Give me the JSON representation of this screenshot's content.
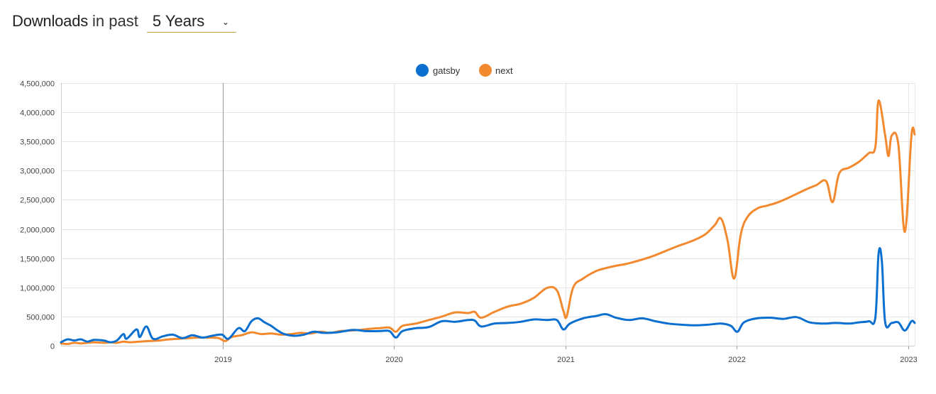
{
  "header": {
    "title": "Downloads",
    "qualifier": "in past",
    "range_value": "5 Years",
    "range_chevron": "⌄",
    "range_icon": "chevron-down-icon"
  },
  "chart_data": {
    "type": "line",
    "title": "",
    "xlabel": "",
    "ylabel": "",
    "legend_position": "top-center",
    "grid": true,
    "ylim": [
      0,
      4500000
    ],
    "xlim": [
      "2018-01-21",
      "2023-01-15"
    ],
    "y_ticks": [
      {
        "value": 0,
        "label": "0"
      },
      {
        "value": 500000,
        "label": "500,000"
      },
      {
        "value": 1000000,
        "label": "1,000,000"
      },
      {
        "value": 1500000,
        "label": "1,500,000"
      },
      {
        "value": 2000000,
        "label": "2,000,000"
      },
      {
        "value": 2500000,
        "label": "2,500,000"
      },
      {
        "value": 3000000,
        "label": "3,000,000"
      },
      {
        "value": 3500000,
        "label": "3,500,000"
      },
      {
        "value": 4000000,
        "label": "4,000,000"
      },
      {
        "value": 4500000,
        "label": "4,500,000"
      }
    ],
    "x_ticks": [
      {
        "value": "2019-01-01",
        "label": "2019"
      },
      {
        "value": "2020-01-01",
        "label": "2020"
      },
      {
        "value": "2021-01-01",
        "label": "2021"
      },
      {
        "value": "2022-01-01",
        "label": "2022"
      },
      {
        "value": "2023-01-01",
        "label": "2023"
      }
    ],
    "series": [
      {
        "name": "gatsby",
        "color": "#0b6fd0",
        "points": [
          [
            "2018-01-21",
            60000
          ],
          [
            "2018-02-04",
            110000
          ],
          [
            "2018-02-18",
            90000
          ],
          [
            "2018-03-04",
            110000
          ],
          [
            "2018-03-18",
            70000
          ],
          [
            "2018-04-01",
            100000
          ],
          [
            "2018-04-22",
            90000
          ],
          [
            "2018-05-06",
            60000
          ],
          [
            "2018-05-20",
            90000
          ],
          [
            "2018-06-03",
            200000
          ],
          [
            "2018-06-10",
            120000
          ],
          [
            "2018-07-01",
            280000
          ],
          [
            "2018-07-08",
            150000
          ],
          [
            "2018-07-22",
            330000
          ],
          [
            "2018-08-05",
            120000
          ],
          [
            "2018-08-26",
            160000
          ],
          [
            "2018-09-16",
            190000
          ],
          [
            "2018-10-07",
            130000
          ],
          [
            "2018-10-28",
            180000
          ],
          [
            "2018-11-18",
            140000
          ],
          [
            "2018-12-09",
            170000
          ],
          [
            "2018-12-30",
            190000
          ],
          [
            "2019-01-13",
            120000
          ],
          [
            "2019-02-03",
            300000
          ],
          [
            "2019-02-17",
            250000
          ],
          [
            "2019-03-03",
            420000
          ],
          [
            "2019-03-17",
            470000
          ],
          [
            "2019-03-31",
            400000
          ],
          [
            "2019-04-14",
            340000
          ],
          [
            "2019-04-28",
            260000
          ],
          [
            "2019-05-12",
            200000
          ],
          [
            "2019-06-02",
            170000
          ],
          [
            "2019-06-23",
            190000
          ],
          [
            "2019-07-14",
            240000
          ],
          [
            "2019-08-04",
            220000
          ],
          [
            "2019-09-01",
            230000
          ],
          [
            "2019-10-06",
            270000
          ],
          [
            "2019-11-03",
            250000
          ],
          [
            "2019-12-01",
            250000
          ],
          [
            "2019-12-22",
            250000
          ],
          [
            "2020-01-05",
            140000
          ],
          [
            "2020-01-19",
            250000
          ],
          [
            "2020-02-16",
            300000
          ],
          [
            "2020-03-15",
            320000
          ],
          [
            "2020-04-12",
            420000
          ],
          [
            "2020-05-10",
            410000
          ],
          [
            "2020-06-07",
            440000
          ],
          [
            "2020-06-21",
            430000
          ],
          [
            "2020-07-05",
            330000
          ],
          [
            "2020-08-02",
            380000
          ],
          [
            "2020-08-30",
            390000
          ],
          [
            "2020-09-27",
            410000
          ],
          [
            "2020-10-25",
            450000
          ],
          [
            "2020-11-22",
            440000
          ],
          [
            "2020-12-13",
            440000
          ],
          [
            "2020-12-27",
            280000
          ],
          [
            "2021-01-10",
            380000
          ],
          [
            "2021-02-07",
            470000
          ],
          [
            "2021-03-07",
            510000
          ],
          [
            "2021-03-28",
            540000
          ],
          [
            "2021-04-18",
            480000
          ],
          [
            "2021-05-16",
            440000
          ],
          [
            "2021-06-13",
            470000
          ],
          [
            "2021-07-11",
            420000
          ],
          [
            "2021-08-08",
            380000
          ],
          [
            "2021-09-05",
            360000
          ],
          [
            "2021-10-03",
            350000
          ],
          [
            "2021-10-31",
            360000
          ],
          [
            "2021-11-28",
            380000
          ],
          [
            "2021-12-19",
            340000
          ],
          [
            "2022-01-02",
            240000
          ],
          [
            "2022-01-16",
            400000
          ],
          [
            "2022-02-13",
            470000
          ],
          [
            "2022-03-13",
            480000
          ],
          [
            "2022-04-10",
            460000
          ],
          [
            "2022-05-08",
            490000
          ],
          [
            "2022-06-05",
            400000
          ],
          [
            "2022-07-03",
            380000
          ],
          [
            "2022-07-31",
            390000
          ],
          [
            "2022-08-28",
            380000
          ],
          [
            "2022-09-18",
            400000
          ],
          [
            "2022-10-09",
            420000
          ],
          [
            "2022-10-23",
            480000
          ],
          [
            "2022-10-30",
            1580000
          ],
          [
            "2022-11-06",
            1450000
          ],
          [
            "2022-11-13",
            400000
          ],
          [
            "2022-11-27",
            390000
          ],
          [
            "2022-12-11",
            400000
          ],
          [
            "2022-12-25",
            260000
          ],
          [
            "2023-01-08",
            420000
          ],
          [
            "2023-01-15",
            390000
          ]
        ]
      },
      {
        "name": "next",
        "color": "#f2892f",
        "points": [
          [
            "2018-01-21",
            40000
          ],
          [
            "2018-02-04",
            30000
          ],
          [
            "2018-02-18",
            50000
          ],
          [
            "2018-03-04",
            40000
          ],
          [
            "2018-03-18",
            50000
          ],
          [
            "2018-04-01",
            60000
          ],
          [
            "2018-04-22",
            50000
          ],
          [
            "2018-05-06",
            60000
          ],
          [
            "2018-05-20",
            50000
          ],
          [
            "2018-06-03",
            70000
          ],
          [
            "2018-06-17",
            60000
          ],
          [
            "2018-07-08",
            70000
          ],
          [
            "2018-07-29",
            80000
          ],
          [
            "2018-08-19",
            90000
          ],
          [
            "2018-09-09",
            110000
          ],
          [
            "2018-09-30",
            120000
          ],
          [
            "2018-10-21",
            130000
          ],
          [
            "2018-11-11",
            140000
          ],
          [
            "2018-12-02",
            140000
          ],
          [
            "2018-12-23",
            130000
          ],
          [
            "2019-01-06",
            80000
          ],
          [
            "2019-01-20",
            150000
          ],
          [
            "2019-02-10",
            180000
          ],
          [
            "2019-03-03",
            230000
          ],
          [
            "2019-03-24",
            200000
          ],
          [
            "2019-04-14",
            210000
          ],
          [
            "2019-05-05",
            190000
          ],
          [
            "2019-05-26",
            200000
          ],
          [
            "2019-06-16",
            220000
          ],
          [
            "2019-07-07",
            210000
          ],
          [
            "2019-07-28",
            240000
          ],
          [
            "2019-08-18",
            220000
          ],
          [
            "2019-09-08",
            250000
          ],
          [
            "2019-09-29",
            260000
          ],
          [
            "2019-10-20",
            270000
          ],
          [
            "2019-11-10",
            290000
          ],
          [
            "2019-12-01",
            300000
          ],
          [
            "2019-12-22",
            310000
          ],
          [
            "2020-01-05",
            240000
          ],
          [
            "2020-01-19",
            340000
          ],
          [
            "2020-02-16",
            380000
          ],
          [
            "2020-03-15",
            440000
          ],
          [
            "2020-04-12",
            500000
          ],
          [
            "2020-05-10",
            570000
          ],
          [
            "2020-06-07",
            560000
          ],
          [
            "2020-06-21",
            580000
          ],
          [
            "2020-07-05",
            480000
          ],
          [
            "2020-08-02",
            580000
          ],
          [
            "2020-08-30",
            670000
          ],
          [
            "2020-09-27",
            720000
          ],
          [
            "2020-10-25",
            820000
          ],
          [
            "2020-11-22",
            990000
          ],
          [
            "2020-12-13",
            950000
          ],
          [
            "2020-12-27",
            600000
          ],
          [
            "2021-01-03",
            500000
          ],
          [
            "2021-01-17",
            1000000
          ],
          [
            "2021-02-07",
            1150000
          ],
          [
            "2021-03-07",
            1280000
          ],
          [
            "2021-03-28",
            1330000
          ],
          [
            "2021-04-18",
            1370000
          ],
          [
            "2021-05-09",
            1400000
          ],
          [
            "2021-06-06",
            1460000
          ],
          [
            "2021-07-04",
            1530000
          ],
          [
            "2021-08-01",
            1620000
          ],
          [
            "2021-08-29",
            1710000
          ],
          [
            "2021-09-26",
            1790000
          ],
          [
            "2021-10-24",
            1900000
          ],
          [
            "2021-11-14",
            2060000
          ],
          [
            "2021-11-28",
            2180000
          ],
          [
            "2021-12-12",
            1800000
          ],
          [
            "2021-12-26",
            1150000
          ],
          [
            "2022-01-09",
            1900000
          ],
          [
            "2022-01-23",
            2200000
          ],
          [
            "2022-02-13",
            2350000
          ],
          [
            "2022-03-06",
            2400000
          ],
          [
            "2022-03-27",
            2450000
          ],
          [
            "2022-04-17",
            2520000
          ],
          [
            "2022-05-08",
            2600000
          ],
          [
            "2022-05-29",
            2680000
          ],
          [
            "2022-06-19",
            2750000
          ],
          [
            "2022-07-10",
            2820000
          ],
          [
            "2022-07-24",
            2460000
          ],
          [
            "2022-08-07",
            2950000
          ],
          [
            "2022-08-28",
            3050000
          ],
          [
            "2022-09-18",
            3150000
          ],
          [
            "2022-10-09",
            3300000
          ],
          [
            "2022-10-23",
            3400000
          ],
          [
            "2022-10-30",
            4200000
          ],
          [
            "2022-11-13",
            3600000
          ],
          [
            "2022-11-20",
            3250000
          ],
          [
            "2022-11-27",
            3600000
          ],
          [
            "2022-12-11",
            3450000
          ],
          [
            "2022-12-25",
            1950000
          ],
          [
            "2023-01-08",
            3600000
          ],
          [
            "2023-01-15",
            3620000
          ]
        ]
      }
    ]
  }
}
